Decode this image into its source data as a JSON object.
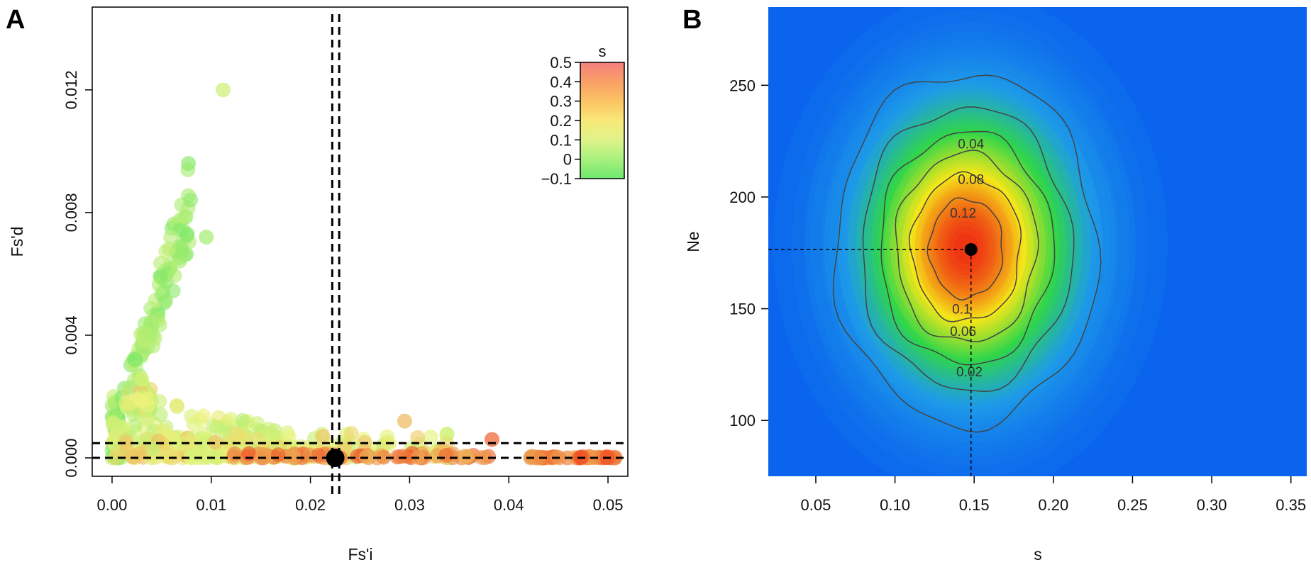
{
  "panels": {
    "a": {
      "letter": "A"
    },
    "b": {
      "letter": "B"
    }
  },
  "chart_data": [
    {
      "panel": "A",
      "type": "scatter",
      "xlabel": "Fs'i",
      "ylabel": "Fs'd",
      "xlim": [
        -0.002,
        0.052
      ],
      "ylim": [
        -0.0006,
        0.0147
      ],
      "xticks": [
        0.0,
        0.01,
        0.02,
        0.03,
        0.04,
        0.05
      ],
      "xtick_labels": [
        "0.00",
        "0.01",
        "0.02",
        "0.03",
        "0.04",
        "0.05"
      ],
      "yticks": [
        0.0,
        0.004,
        0.008,
        0.012
      ],
      "ytick_labels": [
        "0.000",
        "0.004",
        "0.008",
        "0.012"
      ],
      "color_variable": "s",
      "colorbar": {
        "title": "s",
        "range": [
          -0.1,
          0.5
        ],
        "ticks": [
          0.5,
          0.4,
          0.3,
          0.2,
          0.1,
          0,
          -0.1
        ],
        "tick_labels": [
          "0.5",
          "0.4",
          "0.3",
          "0.2",
          "0.1",
          "0",
          "−0.1"
        ],
        "colors": [
          "#f57f7f",
          "#f9a066",
          "#fbc363",
          "#f9e878",
          "#def38a",
          "#a8f07d",
          "#6ee86f"
        ]
      },
      "point_colors": {
        "low": "#7de86a",
        "mid": "#ecf37a",
        "high": "#f0421e"
      },
      "reference_lines": {
        "vertical_x": [
          0.0222,
          0.0229
        ],
        "horizontal_y": [
          0.0,
          0.00048
        ]
      },
      "highlight_point": {
        "x": 0.0225,
        "y": 0.0,
        "color": "#000000"
      },
      "clusters": [
        {
          "x": [
            0.0,
            0.001
          ],
          "y": [
            0.0,
            0.0025
          ],
          "s": [
            -0.1,
            0.15
          ],
          "n": 60
        },
        {
          "x": [
            0.001,
            0.008
          ],
          "y": [
            0.0015,
            0.0097
          ],
          "s": [
            -0.1,
            0.1
          ],
          "n": 90
        },
        {
          "x": [
            0.001,
            0.004
          ],
          "y": [
            0.0015,
            0.0035
          ],
          "s": [
            0.0,
            0.3
          ],
          "n": 30
        },
        {
          "x": [
            0.0,
            0.018
          ],
          "y": [
            0.0002,
            0.0022
          ],
          "s": [
            0.05,
            0.22
          ],
          "n": 120
        },
        {
          "x": [
            0.0,
            0.034
          ],
          "y": [
            0.0,
            0.0008
          ],
          "s": [
            0.1,
            0.3
          ],
          "n": 180
        },
        {
          "x": [
            0.012,
            0.038
          ],
          "y": [
            0.0,
            0.00015
          ],
          "s": [
            0.28,
            0.48
          ],
          "n": 70
        },
        {
          "x": [
            0.0415,
            0.051
          ],
          "y": [
            0.0,
            5e-05
          ],
          "s": [
            0.3,
            0.5
          ],
          "n": 55
        }
      ],
      "notable_points": [
        {
          "x": 0.0112,
          "y": 0.012,
          "s": 0.12
        },
        {
          "x": 0.0383,
          "y": 0.0006,
          "s": 0.45
        },
        {
          "x": 0.0295,
          "y": 0.0012,
          "s": 0.3
        },
        {
          "x": 0.0077,
          "y": 0.0096,
          "s": -0.05
        },
        {
          "x": 0.0095,
          "y": 0.0072,
          "s": 0.0
        }
      ]
    },
    {
      "panel": "B",
      "type": "heatmap",
      "xlabel": "s",
      "ylabel": "Ne",
      "xlim": [
        0.02,
        0.36
      ],
      "ylim": [
        75,
        285
      ],
      "xticks": [
        0.05,
        0.1,
        0.15,
        0.2,
        0.25,
        0.3,
        0.35
      ],
      "xtick_labels": [
        "0.05",
        "0.10",
        "0.15",
        "0.20",
        "0.25",
        "0.30",
        "0.35"
      ],
      "yticks": [
        100,
        150,
        200,
        250
      ],
      "ytick_labels": [
        "100",
        "150",
        "200",
        "250"
      ],
      "density_peak": {
        "x": 0.145,
        "y": 177,
        "value": 0.14
      },
      "density_spread": {
        "sx": 0.042,
        "sy": 40
      },
      "colors": {
        "background": "#0a64ee",
        "low": "#1e9be8",
        "mid": "#2fd64a",
        "high": "#f5e619",
        "peak": "#ef2d12"
      },
      "contour_levels": [
        0.02,
        0.04,
        0.06,
        0.08,
        0.1,
        0.12
      ],
      "contour_labels": [
        {
          "level": 0.04,
          "text": "0.04",
          "x": 0.148,
          "y": 224
        },
        {
          "level": 0.08,
          "text": "0.08",
          "x": 0.148,
          "y": 208
        },
        {
          "level": 0.12,
          "text": "0.12",
          "x": 0.143,
          "y": 193
        },
        {
          "level": 0.1,
          "text": "0.1",
          "x": 0.142,
          "y": 150
        },
        {
          "level": 0.06,
          "text": "0.06",
          "x": 0.143,
          "y": 140
        },
        {
          "level": 0.02,
          "text": "0.02",
          "x": 0.147,
          "y": 122
        }
      ],
      "mode_point": {
        "x": 0.148,
        "y": 176.5,
        "color": "#000000"
      },
      "guide_lines": {
        "x": 0.148,
        "y": 176.5
      }
    }
  ]
}
